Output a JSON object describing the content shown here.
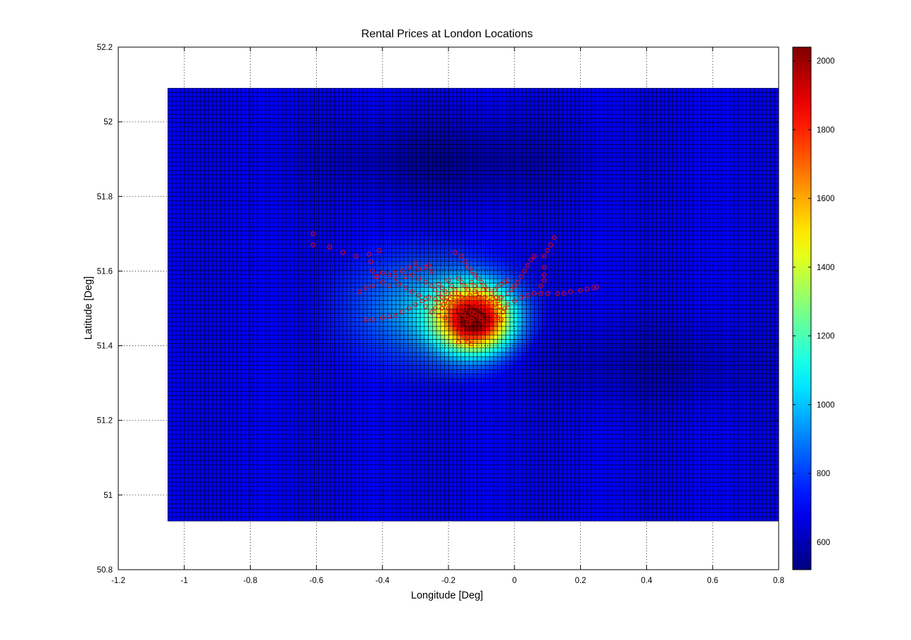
{
  "chart_data": {
    "type": "heatmap",
    "title": "Rental Prices at London Locations",
    "xlabel": "Longitude [Deg]",
    "ylabel": "Latitude [Deg]",
    "xlim": [
      -1.2,
      0.8
    ],
    "ylim": [
      50.8,
      52.2
    ],
    "xticks": [
      -1.2,
      -1,
      -0.8,
      -0.6,
      -0.4,
      -0.2,
      0,
      0.2,
      0.4,
      0.6,
      0.8
    ],
    "yticks": [
      50.8,
      51,
      51.2,
      51.4,
      51.6,
      51.8,
      52,
      52.2
    ],
    "xtick_labels": [
      "-1.2",
      "-1",
      "-0.8",
      "-0.6",
      "-0.4",
      "-0.2",
      "0",
      "0.2",
      "0.4",
      "0.6",
      "0.8"
    ],
    "ytick_labels": [
      "50.8",
      "51",
      "51.2",
      "51.4",
      "51.6",
      "51.8",
      "52",
      "52.2"
    ],
    "grid": true,
    "grid_style": "dotted",
    "surface": {
      "x_range": [
        -1.05,
        0.8
      ],
      "y_range": [
        50.93,
        52.09
      ],
      "baseline_price": 700,
      "peak_price": 2040,
      "peak_location": [
        -0.12,
        51.47
      ],
      "low_regions": [
        {
          "center": [
            -0.2,
            51.9
          ],
          "min_price": 560
        },
        {
          "center": [
            0.4,
            51.35
          ],
          "min_price": 600
        }
      ],
      "colormap": "jet",
      "cell_edge_color": "#000000"
    },
    "colorbar": {
      "min": 520,
      "max": 2040,
      "ticks": [
        600,
        800,
        1000,
        1200,
        1400,
        1600,
        1800,
        2000
      ],
      "tick_labels": [
        "600",
        "800",
        "1000",
        "1200",
        "1400",
        "1600",
        "1800",
        "2000"
      ],
      "placement": "right"
    },
    "markers": {
      "style": "open-circle",
      "color": "#ff0000",
      "points": [
        [
          -0.61,
          51.7
        ],
        [
          -0.61,
          51.67
        ],
        [
          -0.56,
          51.665
        ],
        [
          -0.52,
          51.65
        ],
        [
          -0.48,
          51.64
        ],
        [
          -0.44,
          51.645
        ],
        [
          -0.41,
          51.655
        ],
        [
          -0.435,
          51.625
        ],
        [
          -0.43,
          51.6
        ],
        [
          -0.415,
          51.585
        ],
        [
          -0.4,
          51.57
        ],
        [
          -0.43,
          51.56
        ],
        [
          -0.45,
          51.555
        ],
        [
          -0.47,
          51.545
        ],
        [
          -0.45,
          51.47
        ],
        [
          -0.43,
          51.47
        ],
        [
          -0.4,
          51.475
        ],
        [
          -0.38,
          51.478
        ],
        [
          -0.36,
          51.48
        ],
        [
          -0.34,
          51.49
        ],
        [
          -0.32,
          51.5
        ],
        [
          -0.3,
          51.51
        ],
        [
          -0.38,
          51.56
        ],
        [
          -0.36,
          51.58
        ],
        [
          -0.33,
          51.585
        ],
        [
          -0.31,
          51.59
        ],
        [
          -0.3,
          51.62
        ],
        [
          -0.29,
          51.605
        ],
        [
          -0.27,
          51.61
        ],
        [
          -0.26,
          51.615
        ],
        [
          -0.25,
          51.6
        ],
        [
          -0.29,
          51.58
        ],
        [
          -0.27,
          51.57
        ],
        [
          -0.25,
          51.56
        ],
        [
          -0.24,
          51.55
        ],
        [
          -0.23,
          51.54
        ],
        [
          -0.22,
          51.53
        ],
        [
          -0.21,
          51.52
        ],
        [
          -0.2,
          51.515
        ],
        [
          -0.26,
          51.53
        ],
        [
          -0.28,
          51.52
        ],
        [
          -0.24,
          51.5
        ],
        [
          -0.22,
          51.5
        ],
        [
          -0.2,
          51.5
        ],
        [
          -0.19,
          51.49
        ],
        [
          -0.18,
          51.48
        ],
        [
          -0.17,
          51.47
        ],
        [
          -0.17,
          51.45
        ],
        [
          -0.16,
          51.43
        ],
        [
          -0.17,
          51.41
        ],
        [
          -0.18,
          51.46
        ],
        [
          -0.16,
          51.44
        ],
        [
          -0.15,
          51.42
        ],
        [
          -0.14,
          51.41
        ],
        [
          -0.13,
          51.405
        ],
        [
          -0.18,
          51.65
        ],
        [
          -0.16,
          51.64
        ],
        [
          -0.15,
          51.625
        ],
        [
          -0.14,
          51.61
        ],
        [
          -0.13,
          51.6
        ],
        [
          -0.12,
          51.59
        ],
        [
          -0.11,
          51.58
        ],
        [
          -0.1,
          51.57
        ],
        [
          -0.09,
          51.56
        ],
        [
          -0.08,
          51.55
        ],
        [
          -0.07,
          51.54
        ],
        [
          -0.2,
          51.575
        ],
        [
          -0.19,
          51.56
        ],
        [
          -0.18,
          51.55
        ],
        [
          -0.17,
          51.54
        ],
        [
          -0.16,
          51.53
        ],
        [
          -0.15,
          51.525
        ],
        [
          -0.14,
          51.52
        ],
        [
          -0.13,
          51.515
        ],
        [
          -0.12,
          51.51
        ],
        [
          -0.11,
          51.505
        ],
        [
          -0.1,
          51.5
        ],
        [
          -0.09,
          51.495
        ],
        [
          -0.08,
          51.49
        ],
        [
          -0.07,
          51.485
        ],
        [
          -0.06,
          51.48
        ],
        [
          -0.05,
          51.475
        ],
        [
          -0.04,
          51.47
        ],
        [
          -0.03,
          51.5
        ],
        [
          -0.02,
          51.51
        ],
        [
          0.0,
          51.52
        ],
        [
          0.02,
          51.53
        ],
        [
          0.04,
          51.535
        ],
        [
          0.06,
          51.54
        ],
        [
          0.08,
          51.54
        ],
        [
          0.1,
          51.54
        ],
        [
          0.13,
          51.54
        ],
        [
          0.15,
          51.54
        ],
        [
          0.17,
          51.545
        ],
        [
          0.2,
          51.548
        ],
        [
          0.22,
          51.552
        ],
        [
          0.24,
          51.555
        ],
        [
          0.25,
          51.557
        ],
        [
          0.12,
          51.69
        ],
        [
          0.11,
          51.67
        ],
        [
          0.1,
          51.655
        ],
        [
          0.09,
          51.64
        ],
        [
          0.09,
          51.61
        ],
        [
          0.09,
          51.59
        ],
        [
          0.09,
          51.575
        ],
        [
          0.08,
          51.56
        ],
        [
          0.06,
          51.64
        ],
        [
          0.05,
          51.63
        ],
        [
          0.04,
          51.615
        ],
        [
          0.03,
          51.6
        ],
        [
          0.02,
          51.585
        ],
        [
          0.01,
          51.57
        ],
        [
          0.0,
          51.56
        ],
        [
          -0.01,
          51.55
        ],
        [
          -0.02,
          51.54
        ],
        [
          -0.04,
          51.53
        ],
        [
          -0.05,
          51.52
        ],
        [
          -0.06,
          51.51
        ],
        [
          -0.07,
          51.505
        ],
        [
          -0.08,
          51.5
        ],
        [
          -0.06,
          51.55
        ],
        [
          -0.05,
          51.56
        ],
        [
          -0.04,
          51.565
        ],
        [
          -0.03,
          51.57
        ],
        [
          -0.02,
          51.575
        ],
        [
          -0.13,
          51.49
        ],
        [
          -0.12,
          51.485
        ],
        [
          -0.11,
          51.48
        ],
        [
          -0.1,
          51.47
        ],
        [
          -0.09,
          51.46
        ],
        [
          -0.14,
          51.46
        ],
        [
          -0.13,
          51.47
        ],
        [
          -0.15,
          51.5
        ],
        [
          -0.16,
          51.51
        ],
        [
          -0.17,
          51.52
        ],
        [
          -0.18,
          51.53
        ],
        [
          -0.19,
          51.54
        ],
        [
          -0.21,
          51.545
        ],
        [
          -0.22,
          51.555
        ],
        [
          -0.23,
          51.565
        ],
        [
          -0.11,
          51.53
        ],
        [
          -0.1,
          51.52
        ],
        [
          -0.09,
          51.53
        ],
        [
          -0.12,
          51.545
        ],
        [
          -0.14,
          51.55
        ],
        [
          -0.15,
          51.56
        ],
        [
          -0.16,
          51.57
        ],
        [
          -0.17,
          51.58
        ],
        [
          -0.13,
          51.57
        ],
        [
          -0.12,
          51.56
        ],
        [
          -0.35,
          51.565
        ],
        [
          -0.33,
          51.555
        ],
        [
          -0.31,
          51.545
        ],
        [
          -0.29,
          51.535
        ],
        [
          -0.27,
          51.525
        ],
        [
          -0.34,
          51.6
        ],
        [
          -0.32,
          51.61
        ],
        [
          -0.36,
          51.595
        ],
        [
          -0.38,
          51.59
        ],
        [
          -0.4,
          51.595
        ],
        [
          -0.42,
          51.585
        ],
        [
          -0.25,
          51.49
        ],
        [
          -0.23,
          51.48
        ],
        [
          -0.21,
          51.475
        ],
        [
          -0.27,
          51.505
        ],
        [
          -0.23,
          51.515
        ],
        [
          -0.24,
          51.525
        ],
        [
          -0.215,
          51.51
        ],
        [
          -0.205,
          51.53
        ],
        [
          -0.195,
          51.525
        ],
        [
          -0.185,
          51.515
        ],
        [
          -0.175,
          51.505
        ],
        [
          -0.165,
          51.495
        ],
        [
          -0.155,
          51.485
        ],
        [
          -0.145,
          51.475
        ],
        [
          -0.135,
          51.535
        ],
        [
          -0.125,
          51.525
        ],
        [
          -0.115,
          51.515
        ],
        [
          -0.105,
          51.54
        ],
        [
          -0.095,
          51.55
        ],
        [
          -0.085,
          51.515
        ],
        [
          -0.075,
          51.52
        ],
        [
          -0.065,
          51.525
        ],
        [
          -0.055,
          51.53
        ],
        [
          -0.045,
          51.505
        ],
        [
          -0.035,
          51.49
        ]
      ]
    }
  }
}
